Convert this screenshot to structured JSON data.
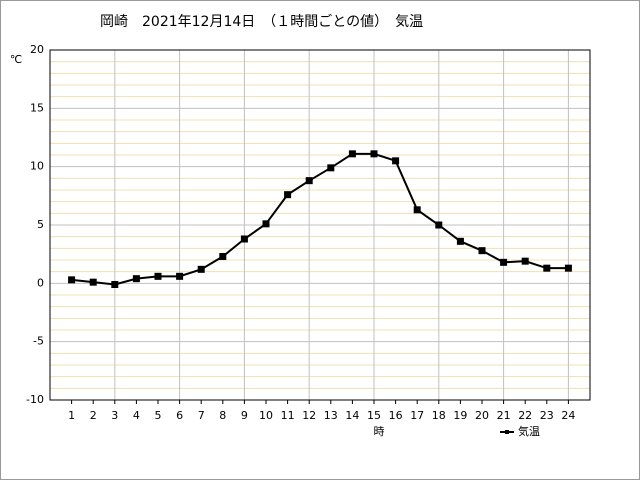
{
  "chart_data": {
    "type": "line",
    "title": "岡崎　2021年12月14日　（１時間ごとの値）　気温",
    "y_unit": "℃",
    "x_label": "時",
    "x": [
      1,
      2,
      3,
      4,
      5,
      6,
      7,
      8,
      9,
      10,
      11,
      12,
      13,
      14,
      15,
      16,
      17,
      18,
      19,
      20,
      21,
      22,
      23,
      24
    ],
    "series": [
      {
        "name": "気温",
        "color": "#000000",
        "values": [
          0.3,
          0.1,
          -0.1,
          0.4,
          0.6,
          0.6,
          1.2,
          2.3,
          3.8,
          5.1,
          7.6,
          8.8,
          9.9,
          11.1,
          11.1,
          10.5,
          6.3,
          5.0,
          3.6,
          2.8,
          1.8,
          1.9,
          1.3,
          1.3
        ]
      }
    ],
    "xlim": [
      0,
      25
    ],
    "xticks": [
      1,
      2,
      3,
      4,
      5,
      6,
      7,
      8,
      9,
      10,
      11,
      12,
      13,
      14,
      15,
      16,
      17,
      18,
      19,
      20,
      21,
      22,
      23,
      24
    ],
    "xgrid_ticks": [
      3,
      6,
      9,
      12,
      15,
      18,
      21,
      24
    ],
    "ylim": [
      -10,
      20
    ],
    "yticks": [
      -10,
      -5,
      0,
      5,
      10,
      15,
      20
    ],
    "minor_yticks": [
      -9,
      -8,
      -7,
      -6,
      -4,
      -3,
      -2,
      -1,
      1,
      2,
      3,
      4,
      6,
      7,
      8,
      9,
      11,
      12,
      13,
      14,
      16,
      17,
      18,
      19
    ],
    "grid": true,
    "legend": "bottom-right"
  }
}
